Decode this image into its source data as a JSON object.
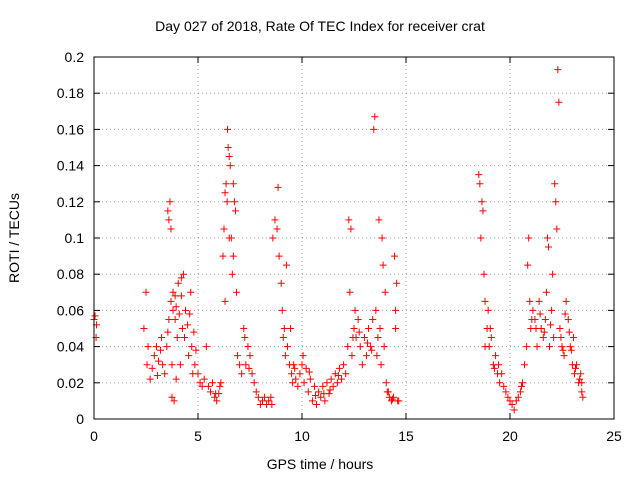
{
  "chart_data": {
    "type": "scatter",
    "title": "Day 027 of 2018, Rate Of TEC Index for receiver crat",
    "xlabel": "GPS time / hours",
    "ylabel": "ROTI / TECUs",
    "xlim": [
      0,
      25
    ],
    "ylim": [
      0,
      0.2
    ],
    "xticks": [
      0,
      5,
      10,
      15,
      20,
      25
    ],
    "yticks": [
      0,
      0.02,
      0.04,
      0.06,
      0.08,
      0.1,
      0.12,
      0.14,
      0.16,
      0.18,
      0.2
    ],
    "grid": true,
    "marker": "+",
    "color": "#ff0000",
    "series": [
      {
        "name": "ROTI",
        "points": [
          [
            0.0,
            0.055
          ],
          [
            0.05,
            0.057
          ],
          [
            0.1,
            0.045
          ],
          [
            0.12,
            0.052
          ],
          [
            2.4,
            0.05
          ],
          [
            2.5,
            0.07
          ],
          [
            2.55,
            0.03
          ],
          [
            2.6,
            0.04
          ],
          [
            2.7,
            0.022
          ],
          [
            2.8,
            0.028
          ],
          [
            2.9,
            0.035
          ],
          [
            3.0,
            0.04
          ],
          [
            3.05,
            0.024
          ],
          [
            3.1,
            0.032
          ],
          [
            3.2,
            0.038
          ],
          [
            3.25,
            0.045
          ],
          [
            3.3,
            0.03
          ],
          [
            3.4,
            0.025
          ],
          [
            3.5,
            0.04
          ],
          [
            3.55,
            0.048
          ],
          [
            3.6,
            0.055
          ],
          [
            3.65,
            0.12
          ],
          [
            3.7,
            0.065
          ],
          [
            3.75,
            0.03
          ],
          [
            3.8,
            0.07
          ],
          [
            3.85,
            0.01
          ],
          [
            3.9,
            0.055
          ],
          [
            3.95,
            0.062
          ],
          [
            4.0,
            0.045
          ],
          [
            4.05,
            0.075
          ],
          [
            4.1,
            0.058
          ],
          [
            4.15,
            0.03
          ],
          [
            4.2,
            0.068
          ],
          [
            4.25,
            0.05
          ],
          [
            4.3,
            0.08
          ],
          [
            4.35,
            0.045
          ],
          [
            4.4,
            0.06
          ],
          [
            4.5,
            0.052
          ],
          [
            4.55,
            0.035
          ],
          [
            4.6,
            0.058
          ],
          [
            4.65,
            0.07
          ],
          [
            4.7,
            0.04
          ],
          [
            4.75,
            0.025
          ],
          [
            4.8,
            0.048
          ],
          [
            4.85,
            0.03
          ],
          [
            4.9,
            0.038
          ],
          [
            3.55,
            0.115
          ],
          [
            3.6,
            0.11
          ],
          [
            3.7,
            0.105
          ],
          [
            3.8,
            0.06
          ],
          [
            3.9,
            0.068
          ],
          [
            4.2,
            0.078
          ],
          [
            3.95,
            0.022
          ],
          [
            3.75,
            0.012
          ],
          [
            5.0,
            0.025
          ],
          [
            5.1,
            0.02
          ],
          [
            5.2,
            0.018
          ],
          [
            5.3,
            0.022
          ],
          [
            5.4,
            0.04
          ],
          [
            5.5,
            0.018
          ],
          [
            5.6,
            0.015
          ],
          [
            5.7,
            0.02
          ],
          [
            5.8,
            0.012
          ],
          [
            5.9,
            0.01
          ],
          [
            6.0,
            0.014
          ],
          [
            6.1,
            0.02
          ],
          [
            6.2,
            0.09
          ],
          [
            6.25,
            0.105
          ],
          [
            6.3,
            0.125
          ],
          [
            6.35,
            0.13
          ],
          [
            6.4,
            0.12
          ],
          [
            6.42,
            0.16
          ],
          [
            6.45,
            0.15
          ],
          [
            6.5,
            0.145
          ],
          [
            6.55,
            0.14
          ],
          [
            6.6,
            0.1
          ],
          [
            6.65,
            0.08
          ],
          [
            6.7,
            0.09
          ],
          [
            6.75,
            0.12
          ],
          [
            6.8,
            0.115
          ],
          [
            6.85,
            0.07
          ],
          [
            6.9,
            0.035
          ],
          [
            7.0,
            0.03
          ],
          [
            7.1,
            0.025
          ],
          [
            7.2,
            0.05
          ],
          [
            7.3,
            0.03
          ],
          [
            7.4,
            0.04
          ],
          [
            7.5,
            0.035
          ],
          [
            7.6,
            0.025
          ],
          [
            7.7,
            0.02
          ],
          [
            7.8,
            0.015
          ],
          [
            7.9,
            0.012
          ],
          [
            8.0,
            0.008
          ],
          [
            8.1,
            0.01
          ],
          [
            8.2,
            0.012
          ],
          [
            8.3,
            0.008
          ],
          [
            8.4,
            0.01
          ],
          [
            8.5,
            0.012
          ],
          [
            8.55,
            0.008
          ],
          [
            6.3,
            0.065
          ],
          [
            6.5,
            0.1
          ],
          [
            6.7,
            0.13
          ],
          [
            6.05,
            0.018
          ],
          [
            5.85,
            0.014
          ],
          [
            7.25,
            0.045
          ],
          [
            7.45,
            0.028
          ],
          [
            8.6,
            0.1
          ],
          [
            8.7,
            0.11
          ],
          [
            8.8,
            0.105
          ],
          [
            8.85,
            0.128
          ],
          [
            8.9,
            0.09
          ],
          [
            9.0,
            0.075
          ],
          [
            9.05,
            0.06
          ],
          [
            9.1,
            0.045
          ],
          [
            9.15,
            0.05
          ],
          [
            9.2,
            0.035
          ],
          [
            9.3,
            0.04
          ],
          [
            9.4,
            0.03
          ],
          [
            9.5,
            0.025
          ],
          [
            9.55,
            0.02
          ],
          [
            9.6,
            0.03
          ],
          [
            9.7,
            0.022
          ],
          [
            9.8,
            0.018
          ],
          [
            9.9,
            0.025
          ],
          [
            10.0,
            0.03
          ],
          [
            10.1,
            0.02
          ],
          [
            10.2,
            0.028
          ],
          [
            10.3,
            0.015
          ],
          [
            10.4,
            0.022
          ],
          [
            10.5,
            0.01
          ],
          [
            10.6,
            0.018
          ],
          [
            10.7,
            0.008
          ],
          [
            10.8,
            0.015
          ],
          [
            10.9,
            0.012
          ],
          [
            11.0,
            0.018
          ],
          [
            11.1,
            0.01
          ],
          [
            11.2,
            0.02
          ],
          [
            11.3,
            0.014
          ],
          [
            11.4,
            0.022
          ],
          [
            11.5,
            0.018
          ],
          [
            11.6,
            0.025
          ],
          [
            11.7,
            0.02
          ],
          [
            11.8,
            0.028
          ],
          [
            11.9,
            0.022
          ],
          [
            12.0,
            0.03
          ],
          [
            12.1,
            0.025
          ],
          [
            12.2,
            0.04
          ],
          [
            12.25,
            0.11
          ],
          [
            12.3,
            0.07
          ],
          [
            12.35,
            0.105
          ],
          [
            12.4,
            0.035
          ],
          [
            12.5,
            0.05
          ],
          [
            12.55,
            0.06
          ],
          [
            12.6,
            0.045
          ],
          [
            12.7,
            0.055
          ],
          [
            12.8,
            0.04
          ],
          [
            12.9,
            0.03
          ],
          [
            13.0,
            0.045
          ],
          [
            13.1,
            0.035
          ],
          [
            13.2,
            0.05
          ],
          [
            13.3,
            0.04
          ],
          [
            13.4,
            0.055
          ],
          [
            13.45,
            0.16
          ],
          [
            13.5,
            0.167
          ],
          [
            13.55,
            0.06
          ],
          [
            13.6,
            0.035
          ],
          [
            13.7,
            0.11
          ],
          [
            13.75,
            0.05
          ],
          [
            13.8,
            0.03
          ],
          [
            13.85,
            0.1
          ],
          [
            13.9,
            0.085
          ],
          [
            14.0,
            0.07
          ],
          [
            14.05,
            0.02
          ],
          [
            14.1,
            0.015
          ],
          [
            14.2,
            0.012
          ],
          [
            14.3,
            0.01
          ],
          [
            14.4,
            0.012
          ],
          [
            14.45,
            0.09
          ],
          [
            14.5,
            0.06
          ],
          [
            14.55,
            0.075
          ],
          [
            14.6,
            0.01
          ],
          [
            14.65,
            0.01
          ],
          [
            9.25,
            0.085
          ],
          [
            9.45,
            0.05
          ],
          [
            9.65,
            0.028
          ],
          [
            10.05,
            0.035
          ],
          [
            10.35,
            0.026
          ],
          [
            10.65,
            0.013
          ],
          [
            11.05,
            0.014
          ],
          [
            11.35,
            0.016
          ],
          [
            11.75,
            0.024
          ],
          [
            12.45,
            0.045
          ],
          [
            12.75,
            0.048
          ],
          [
            13.15,
            0.042
          ],
          [
            13.35,
            0.038
          ],
          [
            13.65,
            0.045
          ],
          [
            13.95,
            0.04
          ],
          [
            14.15,
            0.015
          ],
          [
            14.35,
            0.011
          ],
          [
            14.5,
            0.05
          ],
          [
            18.5,
            0.135
          ],
          [
            18.55,
            0.13
          ],
          [
            18.6,
            0.1
          ],
          [
            18.65,
            0.12
          ],
          [
            18.7,
            0.115
          ],
          [
            18.75,
            0.08
          ],
          [
            18.8,
            0.065
          ],
          [
            18.9,
            0.05
          ],
          [
            18.95,
            0.06
          ],
          [
            19.0,
            0.04
          ],
          [
            19.1,
            0.045
          ],
          [
            19.2,
            0.03
          ],
          [
            19.3,
            0.035
          ],
          [
            19.4,
            0.025
          ],
          [
            19.5,
            0.02
          ],
          [
            19.6,
            0.025
          ],
          [
            19.7,
            0.018
          ],
          [
            19.8,
            0.015
          ],
          [
            19.9,
            0.012
          ],
          [
            20.0,
            0.01
          ],
          [
            20.1,
            0.008
          ],
          [
            20.2,
            0.005
          ],
          [
            20.3,
            0.01
          ],
          [
            20.4,
            0.012
          ],
          [
            20.5,
            0.015
          ],
          [
            20.6,
            0.02
          ],
          [
            20.7,
            0.03
          ],
          [
            20.8,
            0.04
          ],
          [
            20.85,
            0.085
          ],
          [
            20.9,
            0.1
          ],
          [
            20.95,
            0.065
          ],
          [
            21.0,
            0.05
          ],
          [
            21.1,
            0.06
          ],
          [
            21.2,
            0.055
          ],
          [
            21.3,
            0.04
          ],
          [
            21.4,
            0.065
          ],
          [
            21.5,
            0.05
          ],
          [
            21.6,
            0.045
          ],
          [
            21.7,
            0.055
          ],
          [
            21.75,
            0.07
          ],
          [
            21.8,
            0.1
          ],
          [
            21.85,
            0.095
          ],
          [
            21.9,
            0.04
          ],
          [
            22.0,
            0.06
          ],
          [
            22.05,
            0.08
          ],
          [
            22.1,
            0.045
          ],
          [
            22.15,
            0.13
          ],
          [
            22.2,
            0.12
          ],
          [
            22.25,
            0.105
          ],
          [
            22.3,
            0.193
          ],
          [
            22.35,
            0.175
          ],
          [
            22.4,
            0.05
          ],
          [
            22.5,
            0.04
          ],
          [
            22.6,
            0.035
          ],
          [
            22.7,
            0.065
          ],
          [
            22.8,
            0.055
          ],
          [
            22.9,
            0.04
          ],
          [
            23.0,
            0.03
          ],
          [
            23.05,
            0.045
          ],
          [
            23.1,
            0.025
          ],
          [
            23.2,
            0.03
          ],
          [
            23.3,
            0.02
          ],
          [
            23.4,
            0.025
          ],
          [
            23.45,
            0.015
          ],
          [
            23.5,
            0.012
          ],
          [
            18.8,
            0.04
          ],
          [
            19.05,
            0.05
          ],
          [
            19.25,
            0.028
          ],
          [
            19.45,
            0.03
          ],
          [
            20.55,
            0.018
          ],
          [
            21.05,
            0.055
          ],
          [
            21.25,
            0.05
          ],
          [
            21.45,
            0.058
          ],
          [
            21.65,
            0.048
          ],
          [
            21.95,
            0.052
          ],
          [
            22.45,
            0.045
          ],
          [
            22.55,
            0.038
          ],
          [
            22.65,
            0.058
          ],
          [
            22.85,
            0.048
          ],
          [
            22.95,
            0.038
          ],
          [
            23.15,
            0.028
          ],
          [
            23.35,
            0.022
          ],
          [
            23.45,
            0.02
          ]
        ]
      }
    ]
  }
}
